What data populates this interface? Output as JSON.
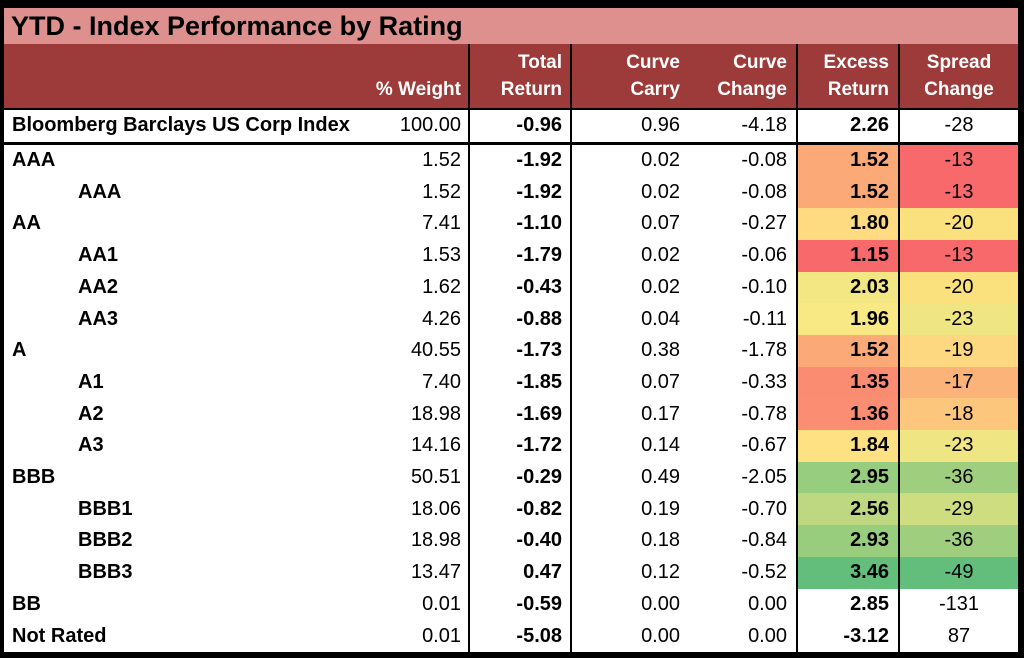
{
  "title": "YTD - Index Performance by Rating",
  "header": {
    "rating": "",
    "weight": "% Weight",
    "total": [
      "Total",
      "Return"
    ],
    "carry": [
      "Curve",
      "Carry"
    ],
    "change": [
      "Curve",
      "Change"
    ],
    "excess": [
      "Excess",
      "Return"
    ],
    "spread": [
      "Spread",
      "Change"
    ]
  },
  "colors": {
    "title_bg": "#DD908D",
    "header_bg": "#9C3B39",
    "header_text": "#FFFFFF",
    "border": "#000000",
    "scale_red": "#F8696B",
    "scale_yellow": "#FFEB84",
    "scale_green": "#63BE7B"
  },
  "rows": [
    {
      "label": "Bloomberg Barclays US Corp Index",
      "indent": false,
      "index_row": true,
      "weight": "100.00",
      "total": "-0.96",
      "carry": "0.96",
      "change": "-4.18",
      "excess": "2.26",
      "spread": "-28",
      "excess_bg": "#FFFFFF",
      "spread_bg": "#FFFFFF"
    },
    {
      "label": "AAA",
      "indent": false,
      "weight": "1.52",
      "total": "-1.92",
      "carry": "0.02",
      "change": "-0.08",
      "excess": "1.52",
      "spread": "-13",
      "excess_bg": "#FBA977",
      "spread_bg": "#F8696B"
    },
    {
      "label": "AAA",
      "indent": true,
      "weight": "1.52",
      "total": "-1.92",
      "carry": "0.02",
      "change": "-0.08",
      "excess": "1.52",
      "spread": "-13",
      "excess_bg": "#FBA977",
      "spread_bg": "#F8696B"
    },
    {
      "label": "AA",
      "indent": false,
      "weight": "7.41",
      "total": "-1.10",
      "carry": "0.07",
      "change": "-0.27",
      "excess": "1.80",
      "spread": "-20",
      "excess_bg": "#FEDA81",
      "spread_bg": "#FBE17E"
    },
    {
      "label": "AA1",
      "indent": true,
      "weight": "1.53",
      "total": "-1.79",
      "carry": "0.02",
      "change": "-0.06",
      "excess": "1.15",
      "spread": "-13",
      "excess_bg": "#F8696B",
      "spread_bg": "#F8696B"
    },
    {
      "label": "AA2",
      "indent": true,
      "weight": "1.62",
      "total": "-0.43",
      "carry": "0.02",
      "change": "-0.10",
      "excess": "2.03",
      "spread": "-20",
      "excess_bg": "#F2E783",
      "spread_bg": "#FBE17E"
    },
    {
      "label": "AA3",
      "indent": true,
      "weight": "4.26",
      "total": "-0.88",
      "carry": "0.04",
      "change": "-0.11",
      "excess": "1.96",
      "spread": "-23",
      "excess_bg": "#F9E984",
      "spread_bg": "#EFE683"
    },
    {
      "label": "A",
      "indent": false,
      "weight": "40.55",
      "total": "-1.73",
      "carry": "0.38",
      "change": "-1.78",
      "excess": "1.52",
      "spread": "-19",
      "excess_bg": "#FBA977",
      "spread_bg": "#FED880"
    },
    {
      "label": "A1",
      "indent": true,
      "weight": "7.40",
      "total": "-1.85",
      "carry": "0.07",
      "change": "-0.33",
      "excess": "1.35",
      "spread": "-17",
      "excess_bg": "#FA8C72",
      "spread_bg": "#FCB379"
    },
    {
      "label": "A2",
      "indent": true,
      "weight": "18.98",
      "total": "-1.69",
      "carry": "0.17",
      "change": "-0.78",
      "excess": "1.36",
      "spread": "-18",
      "excess_bg": "#FA8D72",
      "spread_bg": "#FDC67D"
    },
    {
      "label": "A3",
      "indent": true,
      "weight": "14.16",
      "total": "-1.72",
      "carry": "0.14",
      "change": "-0.67",
      "excess": "1.84",
      "spread": "-23",
      "excess_bg": "#FEE182",
      "spread_bg": "#EFE683"
    },
    {
      "label": "BBB",
      "indent": false,
      "weight": "50.51",
      "total": "-0.29",
      "carry": "0.49",
      "change": "-2.05",
      "excess": "2.95",
      "spread": "-36",
      "excess_bg": "#96CD7E",
      "spread_bg": "#9FCF7E"
    },
    {
      "label": "BBB1",
      "indent": true,
      "weight": "18.06",
      "total": "-0.82",
      "carry": "0.19",
      "change": "-0.70",
      "excess": "2.56",
      "spread": "-29",
      "excess_bg": "#BDD880",
      "spread_bg": "#CFDD81"
    },
    {
      "label": "BBB2",
      "indent": true,
      "weight": "18.98",
      "total": "-0.40",
      "carry": "0.18",
      "change": "-0.84",
      "excess": "2.93",
      "spread": "-36",
      "excess_bg": "#98CD7E",
      "spread_bg": "#9FCF7E"
    },
    {
      "label": "BBB3",
      "indent": true,
      "weight": "13.47",
      "total": "0.47",
      "carry": "0.12",
      "change": "-0.52",
      "excess": "3.46",
      "spread": "-49",
      "excess_bg": "#63BE7B",
      "spread_bg": "#63BE7B"
    },
    {
      "label": "BB",
      "indent": false,
      "weight": "0.01",
      "total": "-0.59",
      "carry": "0.00",
      "change": "0.00",
      "excess": "2.85",
      "spread": "-131",
      "excess_bg": "#FFFFFF",
      "spread_bg": "#FFFFFF"
    },
    {
      "label": "Not Rated",
      "indent": false,
      "weight": "0.01",
      "total": "-5.08",
      "carry": "0.00",
      "change": "0.00",
      "excess": "-3.12",
      "spread": "87",
      "excess_bg": "#FFFFFF",
      "spread_bg": "#FFFFFF"
    }
  ]
}
